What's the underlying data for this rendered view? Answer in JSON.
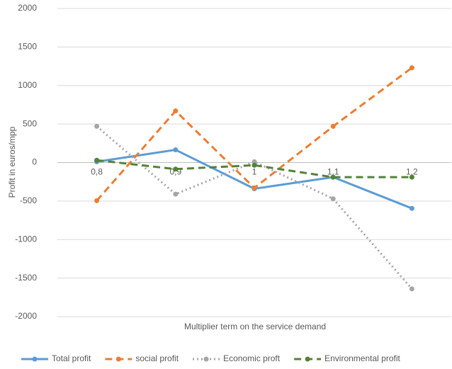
{
  "chart_data": {
    "type": "line",
    "x_label": "Multiplier term on the service demand",
    "y_label": "Profit in euros/mpp",
    "categories": [
      "0,8",
      "0,9",
      "1",
      "1,1",
      "1,2"
    ],
    "series": [
      {
        "name": "Total profit",
        "color": "#5b9bd5",
        "dash": "solid",
        "values": [
          10,
          165,
          -340,
          -190,
          -595
        ]
      },
      {
        "name": "social profit",
        "color": "#ed7d31",
        "dash": "dashed",
        "values": [
          -495,
          670,
          -330,
          470,
          1230
        ]
      },
      {
        "name": "Economic proft",
        "color": "#a5a5a5",
        "dash": "dotted",
        "values": [
          470,
          -410,
          10,
          -470,
          -1640
        ]
      },
      {
        "name": "Environmental profit",
        "color": "#548235",
        "dash": "dashed",
        "values": [
          30,
          -85,
          -35,
          -190,
          -190
        ]
      }
    ],
    "ylim": [
      -2000,
      2000
    ],
    "yticks": [
      -2000,
      -1500,
      -1000,
      -500,
      0,
      500,
      1000,
      1500,
      2000
    ],
    "grid": true,
    "legend": "bottom"
  }
}
